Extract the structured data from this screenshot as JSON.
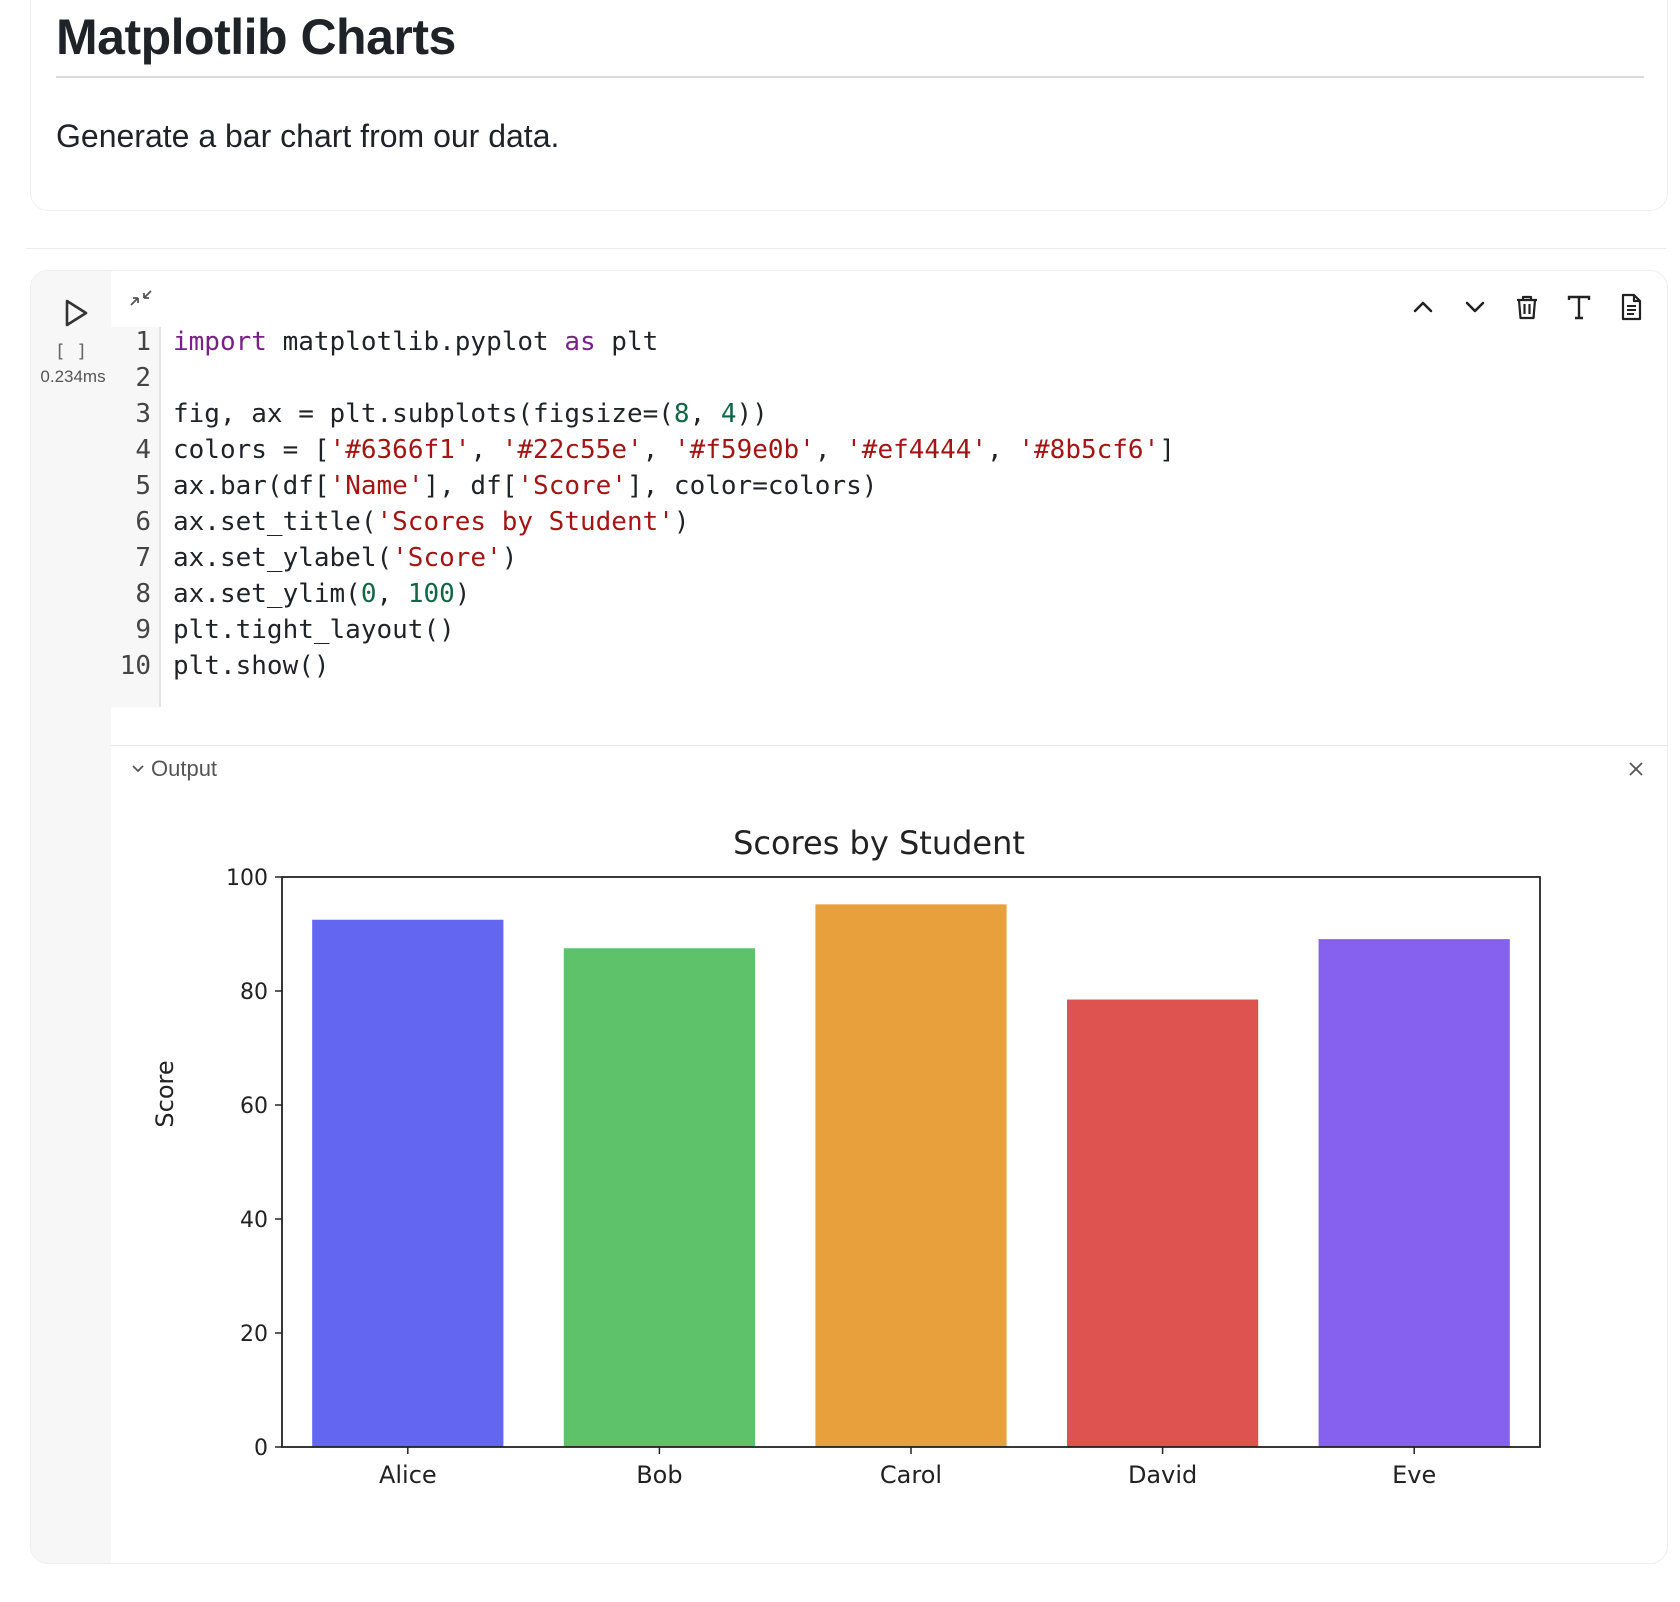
{
  "markdown": {
    "title": "Matplotlib Charts",
    "text": "Generate a bar chart from our data."
  },
  "cell": {
    "exec_count": "[ ]",
    "exec_time": "0.234ms",
    "toolbar": [
      {
        "name": "move-up-button",
        "icon": "chevron-up-icon"
      },
      {
        "name": "move-down-button",
        "icon": "chevron-down-icon"
      },
      {
        "name": "delete-button",
        "icon": "trash-icon"
      },
      {
        "name": "text-format-button",
        "icon": "text-icon"
      },
      {
        "name": "document-button",
        "icon": "document-icon"
      }
    ],
    "code_lines": [
      "import matplotlib.pyplot as plt",
      "",
      "fig, ax = plt.subplots(figsize=(8, 4))",
      "colors = ['#6366f1', '#22c55e', '#f59e0b', '#ef4444', '#8b5cf6']",
      "ax.bar(df['Name'], df['Score'], color=colors)",
      "ax.set_title('Scores by Student')",
      "ax.set_ylabel('Score')",
      "ax.set_ylim(0, 100)",
      "plt.tight_layout()",
      "plt.show()"
    ],
    "output_label": "Output"
  },
  "chart_data": {
    "type": "bar",
    "title": "Scores by Student",
    "xlabel": "",
    "ylabel": "Score",
    "categories": [
      "Alice",
      "Bob",
      "Carol",
      "David",
      "Eve"
    ],
    "values": [
      92.5,
      87.5,
      95.2,
      78.5,
      89.1
    ],
    "colors": [
      "#6366f1",
      "#5ec26a",
      "#e8a03c",
      "#de5250",
      "#8660ee"
    ],
    "ylim": [
      0,
      100
    ],
    "yticks": [
      "0",
      "20",
      "40",
      "60",
      "80",
      "100"
    ],
    "grid": false
  }
}
